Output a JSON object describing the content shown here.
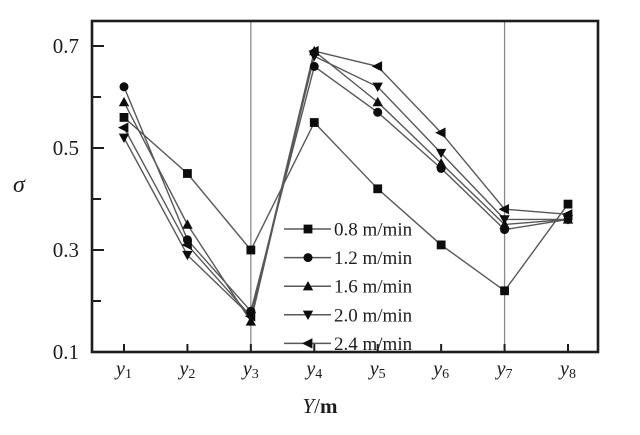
{
  "figure": {
    "background": "#ffffff",
    "frame_color": "#1d1d1d",
    "gridline_color": "#8a8a8a",
    "line_color": "#585858",
    "marker_color": "#0d0d0d",
    "text_color": "#1c1c1c"
  },
  "chart_data": {
    "type": "line",
    "title": "",
    "xlabel": "Y/m",
    "xlabel_italic": "Y",
    "xlabel_sep": "/",
    "xlabel_unit": "m",
    "ylabel": "σ",
    "categories": [
      "y1",
      "y2",
      "y3",
      "y4",
      "y5",
      "y6",
      "y7",
      "y8"
    ],
    "x_tick_base": "y",
    "x_tick_subs": [
      "1",
      "2",
      "3",
      "4",
      "5",
      "6",
      "7",
      "8"
    ],
    "y_ticks_labeled": [
      0.1,
      0.3,
      0.5,
      0.7
    ],
    "y_tick_label_texts": [
      "0.1",
      "0.3",
      "0.5",
      "0.7"
    ],
    "y_ticks_minor": [
      0.2,
      0.4,
      0.6
    ],
    "ylim": [
      0.1,
      0.75
    ],
    "grid_x_categories": [
      "y3",
      "y7"
    ],
    "grid_on": "vertical-lines-at-y3-y7",
    "legend_position": "inside-bottom-center",
    "series": [
      {
        "name": "0.8 m/min",
        "marker": "square",
        "values": [
          0.56,
          0.45,
          0.3,
          0.55,
          0.42,
          0.31,
          0.22,
          0.39
        ]
      },
      {
        "name": "1.2 m/min",
        "marker": "circle",
        "values": [
          0.62,
          0.32,
          0.18,
          0.66,
          0.57,
          0.46,
          0.34,
          0.36
        ]
      },
      {
        "name": "1.6 m/min",
        "marker": "triangle-up",
        "values": [
          0.59,
          0.35,
          0.16,
          0.69,
          0.59,
          0.47,
          0.35,
          0.36
        ]
      },
      {
        "name": "2.0 m/min",
        "marker": "triangle-down",
        "values": [
          0.52,
          0.29,
          0.17,
          0.68,
          0.62,
          0.49,
          0.36,
          0.36
        ]
      },
      {
        "name": "2.4 m/min",
        "marker": "triangle-left",
        "values": [
          0.54,
          0.31,
          0.17,
          0.69,
          0.66,
          0.53,
          0.38,
          0.37
        ]
      }
    ]
  }
}
